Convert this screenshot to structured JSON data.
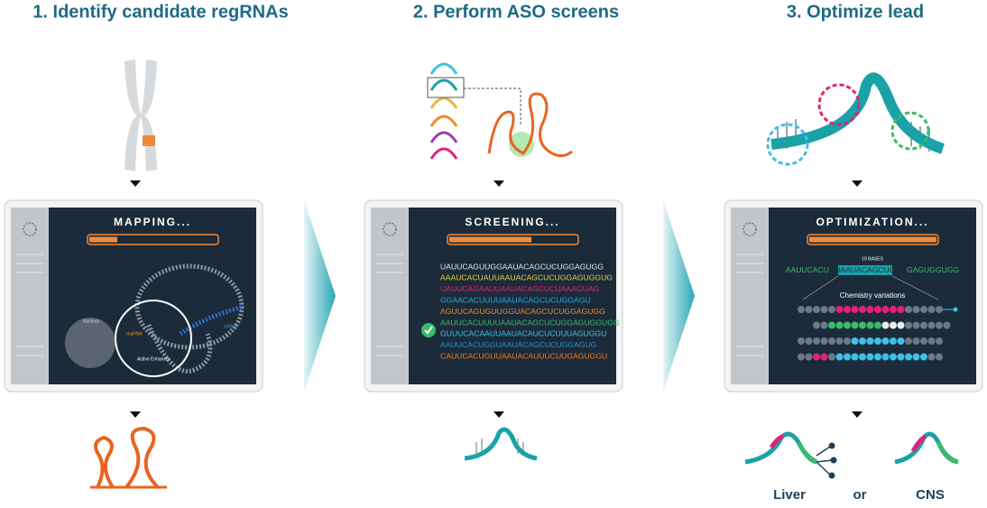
{
  "steps": [
    {
      "title": "1. Identify candidate regRNAs",
      "screen_title": "MAPPING...",
      "labels": {
        "nucleus": "Nucleus",
        "regrna": "regRNA",
        "enhancer": "Active Enhancer",
        "mrna": "mRNA"
      }
    },
    {
      "title": "2. Perform ASO screens",
      "screen_title": "SCREENING...",
      "sequences": [
        {
          "text": "UAUUCAGUUGGAAUACAGCUCUGGAGUGG",
          "color": "#e8e8e8"
        },
        {
          "text": "AAAUCACUAUUAAUACAGCUCUGGAGUGGUG",
          "color": "#e6d13a"
        },
        {
          "text": "UAUUCAGAAUUAAUACAGCUCUAAAGUAG",
          "color": "#e2217a"
        },
        {
          "text": "GGAACACUUUUAAUACAGCUCUGGAGU",
          "color": "#2aa8e0"
        },
        {
          "text": "AGUUCAGUGUUGGUACAGCUCUGGAGUGG",
          "color": "#f08a24"
        },
        {
          "text": "AAUUCACUUUUAAUACAGCUCUGGAGUGGUGG",
          "color": "#3cba6a"
        },
        {
          "text": "GUUUCACAAUUAAUACAUCUCUUUAGUGGU",
          "color": "#3fc0e8"
        },
        {
          "text": "AAUUCACUGGUAAUACAGCUCUGGAGUG",
          "color": "#2a8fd0"
        },
        {
          "text": "CAUUCACUGUUAAUACAUUUCUUGAGUGGU",
          "color": "#f07a24"
        }
      ]
    },
    {
      "title": "3. Optimize lead",
      "screen_title": "OPTIMIZATION...",
      "bases_label": "10 BASES",
      "lead": {
        "prefix": "AAUUCACU",
        "highlight": "UUAAUACAGCUCUG",
        "suffix": "GAGUGGUGG"
      },
      "variations_label": "Chemistry variations",
      "outcomes": {
        "left": "Liver",
        "connector": "or",
        "right": "CNS"
      }
    }
  ]
}
